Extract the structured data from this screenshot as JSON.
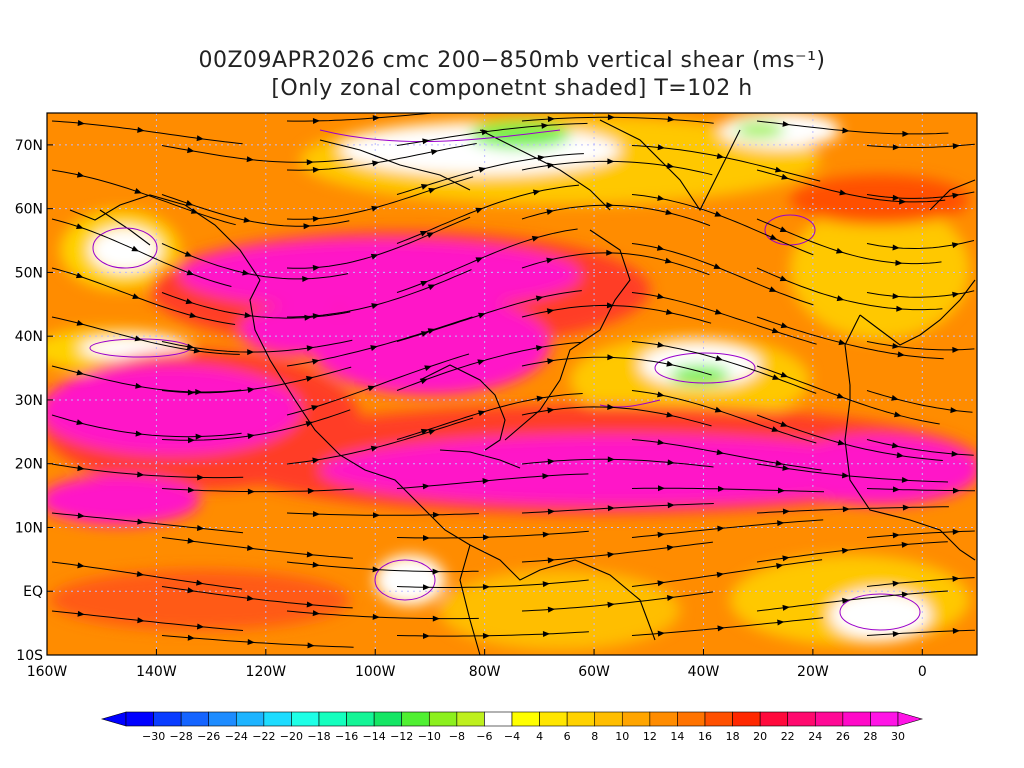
{
  "title": {
    "line1": "00Z09APR2026 cmc 200−850mb vertical shear (ms⁻¹)",
    "line2": "[Only zonal componetnt shaded] T=102 h"
  },
  "map": {
    "lon_range": [
      -160,
      10
    ],
    "lat_range": [
      -10,
      75
    ],
    "lon_labels": [
      "160W",
      "140W",
      "120W",
      "100W",
      "80W",
      "60W",
      "40W",
      "20W",
      "0"
    ],
    "lon_values": [
      -160,
      -140,
      -120,
      -100,
      -80,
      -60,
      -40,
      -20,
      0
    ],
    "lat_labels": [
      "70N",
      "60N",
      "50N",
      "40N",
      "30N",
      "20N",
      "10N",
      "EQ",
      "10S"
    ],
    "lat_values": [
      70,
      60,
      50,
      40,
      30,
      20,
      10,
      0,
      -10
    ]
  },
  "colorbar": {
    "labels": [
      "-30",
      "-28",
      "-26",
      "-24",
      "-22",
      "-20",
      "-18",
      "-16",
      "-14",
      "-12",
      "-10",
      "-8",
      "-6",
      "-4",
      "4",
      "6",
      "8",
      "10",
      "12",
      "14",
      "16",
      "18",
      "20",
      "22",
      "24",
      "26",
      "28",
      "30"
    ],
    "colors": [
      "#0000ff",
      "#0a3cff",
      "#1464ff",
      "#1e8cff",
      "#1eb4ff",
      "#1edcff",
      "#1effe6",
      "#14ffbe",
      "#14f596",
      "#14e664",
      "#50f032",
      "#8cf01e",
      "#bef01e",
      "#ffffff",
      "#ffff00",
      "#ffe600",
      "#ffd200",
      "#ffbe00",
      "#ffa500",
      "#ff8c00",
      "#ff7300",
      "#ff5000",
      "#ff2800",
      "#ff0a3c",
      "#ff0a6e",
      "#ff0a96",
      "#ff0ac8",
      "#ff14e6"
    ]
  },
  "shading_colors": {
    "weak": "#ffffff",
    "yellow": "#ffdc00",
    "orange": "#ffa000",
    "dark_orange": "#ff7800",
    "red": "#ff3c28",
    "magenta": "#ff14c8",
    "green": "#78f050"
  }
}
